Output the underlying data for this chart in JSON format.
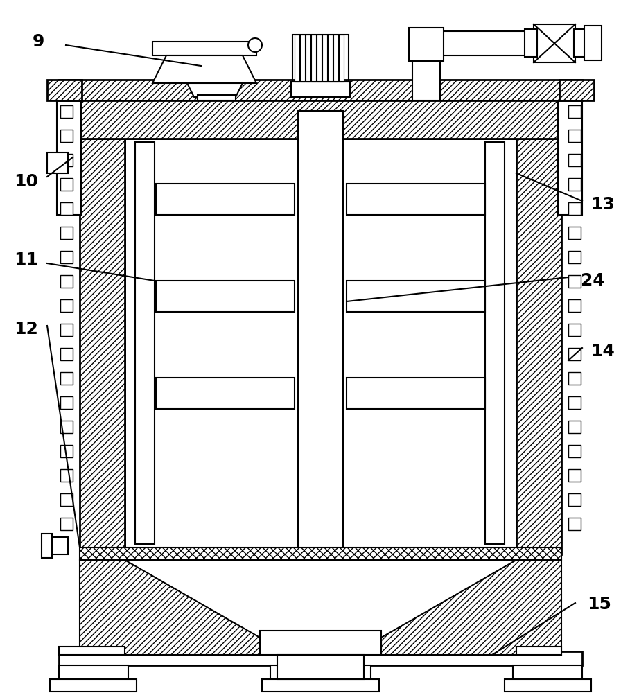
{
  "bg_color": "#ffffff",
  "lw": 1.5,
  "lw2": 2.0,
  "label_fontsize": 16,
  "figsize": [
    9.22,
    10.0
  ],
  "dpi": 100
}
